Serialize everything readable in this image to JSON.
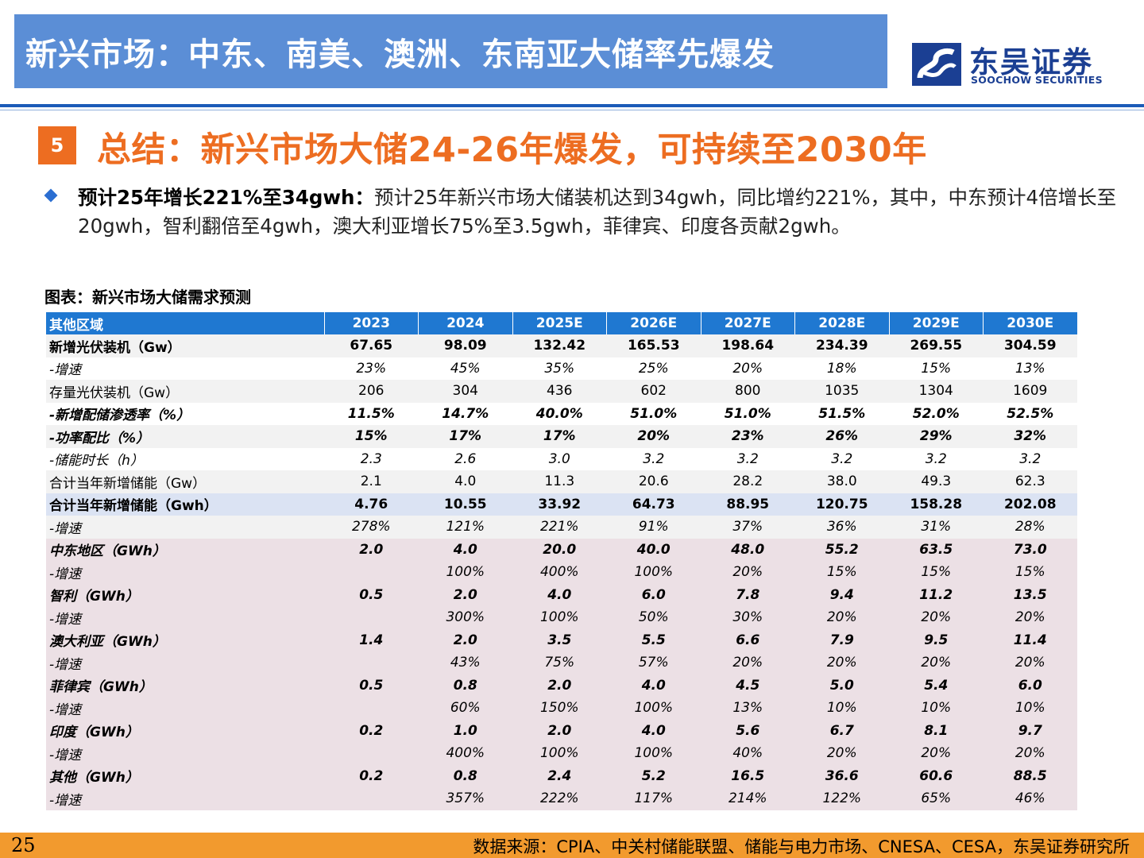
{
  "header": {
    "title": "新兴市场：中东、南美、澳洲、东南亚大储率先爆发",
    "logo_cn": "东吴证券",
    "logo_en": "SOOCHOW SECURITIES"
  },
  "section": {
    "number": "5",
    "title": "总结：新兴市场大储24-26年爆发，可持续至2030年"
  },
  "bullet": {
    "bold": "预计25年增长221%至34gwh：",
    "text": "预计25年新兴市场大储装机达到34gwh，同比增约221%，其中，中东预计4倍增长至20gwh，智利翻倍至4gwh，澳大利亚增长75%至3.5gwh，菲律宾、印度各贡献2gwh。"
  },
  "table": {
    "caption": "图表：新兴市场大储需求预测",
    "headers": [
      "其他区域",
      "2023",
      "2024",
      "2025E",
      "2026E",
      "2027E",
      "2028E",
      "2029E",
      "2030E"
    ],
    "rows": [
      {
        "label": "新增光伏装机（Gw）",
        "values": [
          "67.65",
          "98.09",
          "132.42",
          "165.53",
          "198.64",
          "234.39",
          "269.55",
          "304.59"
        ]
      },
      {
        "label": "-增速",
        "values": [
          "23%",
          "45%",
          "35%",
          "25%",
          "20%",
          "18%",
          "15%",
          "13%"
        ]
      },
      {
        "label": "存量光伏装机（Gw）",
        "values": [
          "206",
          "304",
          "436",
          "602",
          "800",
          "1035",
          "1304",
          "1609"
        ]
      },
      {
        "label": "-新增配储渗透率（%）",
        "values": [
          "11.5%",
          "14.7%",
          "40.0%",
          "51.0%",
          "51.0%",
          "51.5%",
          "52.0%",
          "52.5%"
        ]
      },
      {
        "label": "-功率配比（%）",
        "values": [
          "15%",
          "17%",
          "17%",
          "20%",
          "23%",
          "26%",
          "29%",
          "32%"
        ]
      },
      {
        "label": "-储能时长（h）",
        "values": [
          "2.3",
          "2.6",
          "3.0",
          "3.2",
          "3.2",
          "3.2",
          "3.2",
          "3.2"
        ]
      },
      {
        "label": "合计当年新增储能（Gw）",
        "values": [
          "2.1",
          "4.0",
          "11.3",
          "20.6",
          "28.2",
          "38.0",
          "49.3",
          "62.3"
        ]
      },
      {
        "label": "合计当年新增储能（Gwh）",
        "values": [
          "4.76",
          "10.55",
          "33.92",
          "64.73",
          "88.95",
          "120.75",
          "158.28",
          "202.08"
        ]
      },
      {
        "label": "-增速",
        "values": [
          "278%",
          "121%",
          "221%",
          "91%",
          "37%",
          "36%",
          "31%",
          "28%"
        ]
      },
      {
        "label": "中东地区（GWh）",
        "values": [
          "2.0",
          "4.0",
          "20.0",
          "40.0",
          "48.0",
          "55.2",
          "63.5",
          "73.0"
        ]
      },
      {
        "label": "-增速",
        "values": [
          "",
          "100%",
          "400%",
          "100%",
          "20%",
          "15%",
          "15%",
          "15%"
        ]
      },
      {
        "label": "智利（GWh）",
        "values": [
          "0.5",
          "2.0",
          "4.0",
          "6.0",
          "7.8",
          "9.4",
          "11.2",
          "13.5"
        ]
      },
      {
        "label": "-增速",
        "values": [
          "",
          "300%",
          "100%",
          "50%",
          "30%",
          "20%",
          "20%",
          "20%"
        ]
      },
      {
        "label": "澳大利亚（GWh）",
        "values": [
          "1.4",
          "2.0",
          "3.5",
          "5.5",
          "6.6",
          "7.9",
          "9.5",
          "11.4"
        ]
      },
      {
        "label": "-增速",
        "values": [
          "",
          "43%",
          "75%",
          "57%",
          "20%",
          "20%",
          "20%",
          "20%"
        ]
      },
      {
        "label": "菲律宾（GWh）",
        "values": [
          "0.5",
          "0.8",
          "2.0",
          "4.0",
          "4.5",
          "5.0",
          "5.4",
          "6.0"
        ]
      },
      {
        "label": "-增速",
        "values": [
          "",
          "60%",
          "150%",
          "100%",
          "13%",
          "10%",
          "10%",
          "10%"
        ]
      },
      {
        "label": "印度（GWh）",
        "values": [
          "0.2",
          "1.0",
          "2.0",
          "4.0",
          "5.6",
          "6.7",
          "8.1",
          "9.7"
        ]
      },
      {
        "label": "-增速",
        "values": [
          "",
          "400%",
          "100%",
          "100%",
          "40%",
          "20%",
          "20%",
          "20%"
        ]
      },
      {
        "label": "其他（GWh）",
        "values": [
          "0.2",
          "0.8",
          "2.4",
          "5.2",
          "16.5",
          "36.6",
          "60.6",
          "88.5"
        ]
      },
      {
        "label": "-增速",
        "values": [
          "",
          "357%",
          "222%",
          "117%",
          "214%",
          "122%",
          "65%",
          "46%"
        ]
      }
    ]
  },
  "footer": {
    "page": "25",
    "source": "数据来源：CPIA、中关村储能联盟、储能与电力市场、CNESA、CESA，东吴证券研究所"
  },
  "colors": {
    "header_bg": "#5b8ed6",
    "brand_blue": "#1b3f93",
    "accent_orange": "#ed6d21",
    "table_header": "#1f78d1",
    "row_blue": "#dbe3f3",
    "row_pink": "#ece0e5",
    "footer_orange": "#f29a2e"
  }
}
